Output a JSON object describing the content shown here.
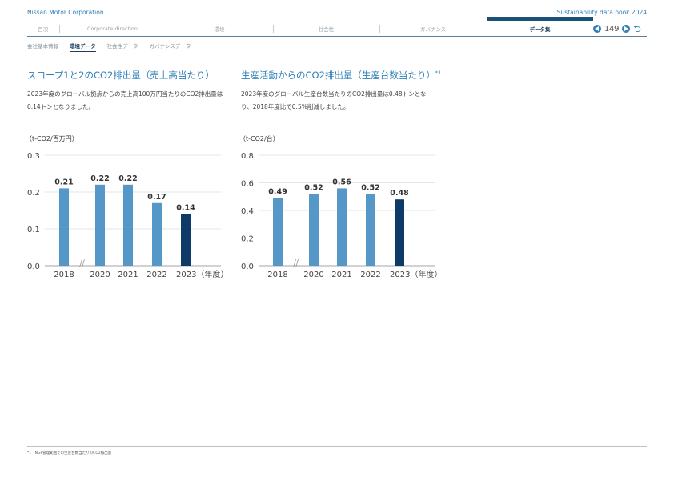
{
  "header": {
    "company": "Nissan Motor Corporation",
    "book": "Sustainability data book 2024"
  },
  "nav": {
    "tabs": [
      {
        "label": "目次"
      },
      {
        "label": "Corporate direction"
      },
      {
        "label": "環境"
      },
      {
        "label": "社会性"
      },
      {
        "label": "ガバナンス"
      },
      {
        "label": "データ集",
        "active": true
      }
    ],
    "page": "149"
  },
  "subnav": {
    "items": [
      {
        "label": "会社基本情報"
      },
      {
        "label": "環境データ",
        "active": true
      },
      {
        "label": "社会性データ"
      },
      {
        "label": "ガバナンスデータ"
      }
    ]
  },
  "left": {
    "title": "スコープ1と2のCO2排出量（売上高当たり）",
    "desc": "2023年度のグローバル拠点からの売上高100万円当たりのCO2排出量は0.14トンとなりました。",
    "unit": "（t-CO2/百万円）"
  },
  "right": {
    "title": "生産活動からのCO2排出量（生産台数当たり）",
    "title_sup": "*1",
    "desc": "2023年度のグローバル生産台数当たりのCO2排出量は0.48トンとなり、2018年度比で0.5%削減しました。",
    "unit": "（t-CO2/台）"
  },
  "chart_data": [
    {
      "type": "bar",
      "categories": [
        "2018",
        "2020",
        "2021",
        "2022",
        "2023（年度）"
      ],
      "values": [
        0.21,
        0.22,
        0.22,
        0.17,
        0.14
      ],
      "value_labels": [
        "0.21",
        "0.22",
        "0.22",
        "0.17",
        "0.14"
      ],
      "yticks": [
        "0.0",
        "0.1",
        "0.2",
        "0.3"
      ],
      "ylim": [
        0,
        0.3
      ],
      "axis_break_after_index": 0,
      "colors": [
        "#5597c6",
        "#5597c6",
        "#5597c6",
        "#5597c6",
        "#0e3a68"
      ]
    },
    {
      "type": "bar",
      "categories": [
        "2018",
        "2020",
        "2021",
        "2022",
        "2023（年度）"
      ],
      "values": [
        0.49,
        0.52,
        0.56,
        0.52,
        0.48
      ],
      "value_labels": [
        "0.49",
        "0.52",
        "0.56",
        "0.52",
        "0.48"
      ],
      "yticks": [
        "0.0",
        "0.2",
        "0.4",
        "0.6",
        "0.8"
      ],
      "ylim": [
        0,
        0.8
      ],
      "axis_break_after_index": 0,
      "colors": [
        "#5597c6",
        "#5597c6",
        "#5597c6",
        "#5597c6",
        "#0e3a68"
      ]
    }
  ],
  "footnote": "*1　NGP管理範囲での生産台数当たりのCO2排出量"
}
